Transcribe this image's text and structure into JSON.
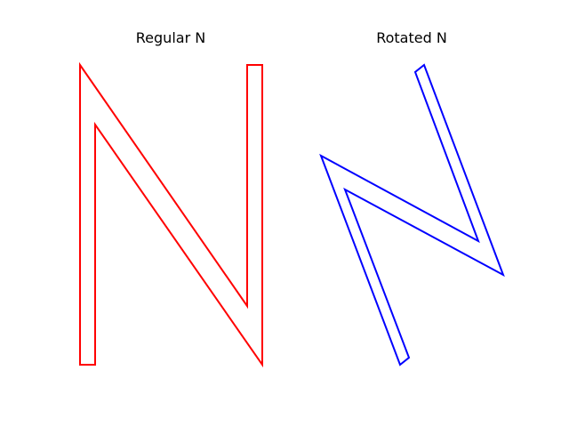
{
  "figure": {
    "panels": [
      {
        "title": "Regular N",
        "shape": "letter-n-outline",
        "stroke_color": "#ff0000"
      },
      {
        "title": "Rotated N",
        "shape": "letter-n-outline-rotated",
        "stroke_color": "#0000ff"
      }
    ]
  }
}
